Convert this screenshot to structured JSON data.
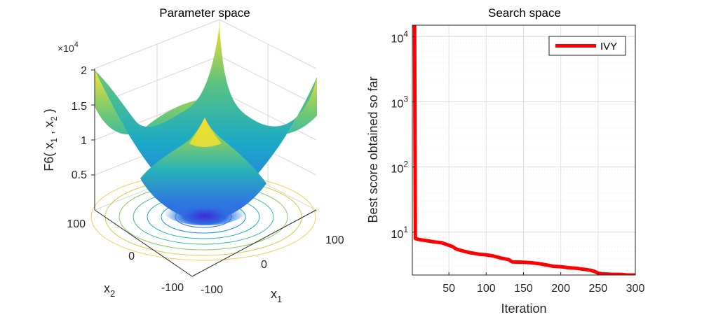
{
  "chart_data": [
    {
      "type": "surface",
      "title": "Parameter space",
      "zlabel": "F6( x",
      "zlabel_sub1": "1",
      "zlabel_sep": " , x",
      "zlabel_sub2": "2",
      "zlabel_end": " )",
      "xlabel": "x",
      "xlabel_sub": "1",
      "ylabel": "x",
      "ylabel_sub": "2",
      "exponent_label": "×10",
      "exponent_power": "4",
      "function": "sum of squares",
      "xlim": [
        -100,
        100
      ],
      "ylim": [
        -100,
        100
      ],
      "zlim": [
        0,
        20000
      ],
      "x_ticks": [
        "-100",
        "0",
        "100"
      ],
      "y_ticks": [
        "-100",
        "0",
        "100"
      ],
      "z_ticks": [
        "0.5",
        "1",
        "1.5",
        "2"
      ],
      "contour_projection": true,
      "colormap": "parula",
      "grid": true
    },
    {
      "type": "line",
      "title": "Search space",
      "xlabel": "Iteration",
      "ylabel": "Best score obtained so far",
      "yscale": "log",
      "xlim": [
        1,
        300
      ],
      "ylim": [
        2.2,
        15000
      ],
      "x_ticks": [
        "50",
        "100",
        "150",
        "200",
        "250",
        "300"
      ],
      "y_ticks": [
        {
          "base": "10",
          "exp": "1"
        },
        {
          "base": "10",
          "exp": "2"
        },
        {
          "base": "10",
          "exp": "3"
        },
        {
          "base": "10",
          "exp": "4"
        }
      ],
      "grid": true,
      "legend_position": "top-right",
      "series": [
        {
          "name": "IVY",
          "color": "#ff0000",
          "x": [
            1,
            4,
            5,
            10,
            20,
            30,
            40,
            45,
            55,
            60,
            70,
            80,
            90,
            100,
            110,
            120,
            130,
            135,
            150,
            160,
            170,
            180,
            190,
            200,
            210,
            220,
            230,
            240,
            245,
            250,
            255,
            270,
            280,
            290,
            300
          ],
          "y": [
            15000,
            15000,
            8,
            7.7,
            7.4,
            7.1,
            6.9,
            6.6,
            6.0,
            5.5,
            5.1,
            4.8,
            4.6,
            4.5,
            4.3,
            4.0,
            3.8,
            3.5,
            3.45,
            3.4,
            3.3,
            3.15,
            3.0,
            2.95,
            2.85,
            2.8,
            2.7,
            2.6,
            2.5,
            2.35,
            2.3,
            2.25,
            2.25,
            2.2,
            2.2
          ]
        }
      ]
    }
  ]
}
